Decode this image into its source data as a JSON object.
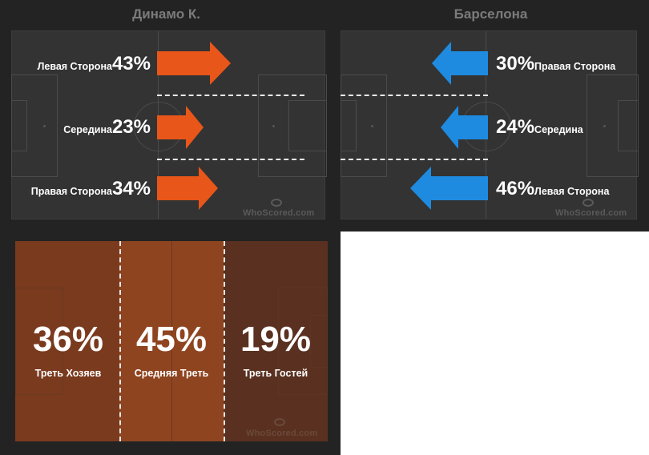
{
  "home": {
    "team": "Динамо К.",
    "color": "#e8561a",
    "rows": [
      {
        "label": "Левая Сторона",
        "pct": "43%",
        "value": 43
      },
      {
        "label": "Середина",
        "pct": "23%",
        "value": 23
      },
      {
        "label": "Правая Сторона",
        "pct": "34%",
        "value": 34
      }
    ]
  },
  "away": {
    "team": "Барселона",
    "color": "#1e8be0",
    "rows": [
      {
        "label": "Правая Сторона",
        "pct": "30%",
        "value": 30
      },
      {
        "label": "Середина",
        "pct": "24%",
        "value": 24
      },
      {
        "label": "Левая Сторона",
        "pct": "46%",
        "value": 46
      }
    ]
  },
  "zones": [
    {
      "label": "Треть Хозяев",
      "pct": "36%",
      "value": 36,
      "color": "#7a3a1e"
    },
    {
      "label": "Средняя Треть",
      "pct": "45%",
      "value": 45,
      "color": "#8f4420"
    },
    {
      "label": "Треть Гостей",
      "pct": "19%",
      "value": 19,
      "color": "#5a3020"
    }
  ],
  "watermark": "WhoScored.com",
  "chart_data": [
    {
      "type": "bar",
      "title": "Динамо К.",
      "categories": [
        "Левая Сторона",
        "Середина",
        "Правая Сторона"
      ],
      "values": [
        43,
        23,
        34
      ],
      "unit": "%"
    },
    {
      "type": "bar",
      "title": "Барселона",
      "categories": [
        "Правая Сторона",
        "Середина",
        "Левая Сторона"
      ],
      "values": [
        30,
        24,
        46
      ],
      "unit": "%"
    },
    {
      "type": "bar",
      "categories": [
        "Треть Хозяев",
        "Средняя Треть",
        "Треть Гостей"
      ],
      "values": [
        36,
        45,
        19
      ],
      "unit": "%"
    }
  ]
}
